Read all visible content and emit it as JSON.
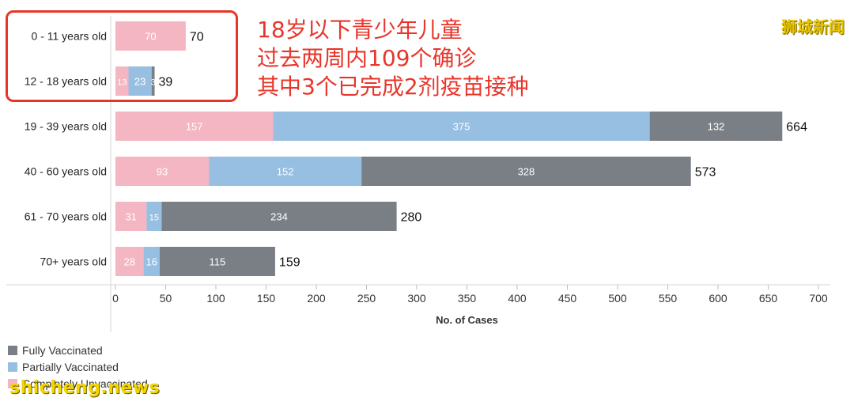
{
  "chart_data": {
    "type": "bar",
    "orientation": "horizontal",
    "stacked": true,
    "categories": [
      "0 - 11 years old",
      "12 - 18 years old",
      "19 - 39 years old",
      "40 - 60 years old",
      "61 - 70 years old",
      "70+ years old"
    ],
    "series": [
      {
        "name": "Completely Unvaccinated",
        "color": "#f4b6c2",
        "values": [
          70,
          13,
          157,
          93,
          31,
          28
        ]
      },
      {
        "name": "Partially Vaccinated",
        "color": "#97bfe2",
        "values": [
          0,
          23,
          375,
          152,
          15,
          16
        ]
      },
      {
        "name": "Fully Vaccinated",
        "color": "#7a7f86",
        "values": [
          0,
          3,
          132,
          328,
          234,
          115
        ]
      }
    ],
    "totals": [
      70,
      39,
      664,
      573,
      280,
      159
    ],
    "xlabel": "No. of Cases",
    "xlim": [
      0,
      700
    ],
    "xticks": [
      0,
      50,
      100,
      150,
      200,
      250,
      300,
      350,
      400,
      450,
      500,
      550,
      600,
      650,
      700
    ],
    "legend": {
      "position": "bottom-left",
      "items": [
        {
          "label": "Fully Vaccinated",
          "color": "#7a7f86"
        },
        {
          "label": "Partially Vaccinated",
          "color": "#97bfe2"
        },
        {
          "label": "Completely Unvaccinated",
          "color": "#f4b6c2"
        }
      ]
    },
    "grid": false
  },
  "annotation": {
    "lines": [
      "18岁以下青少年儿童",
      "过去两周内109个确诊",
      "其中3个已完成2剂疫苗接种"
    ],
    "color": "#e8352a"
  },
  "watermark_top": "狮城新闻",
  "watermark_bottom": "shicheng.news"
}
